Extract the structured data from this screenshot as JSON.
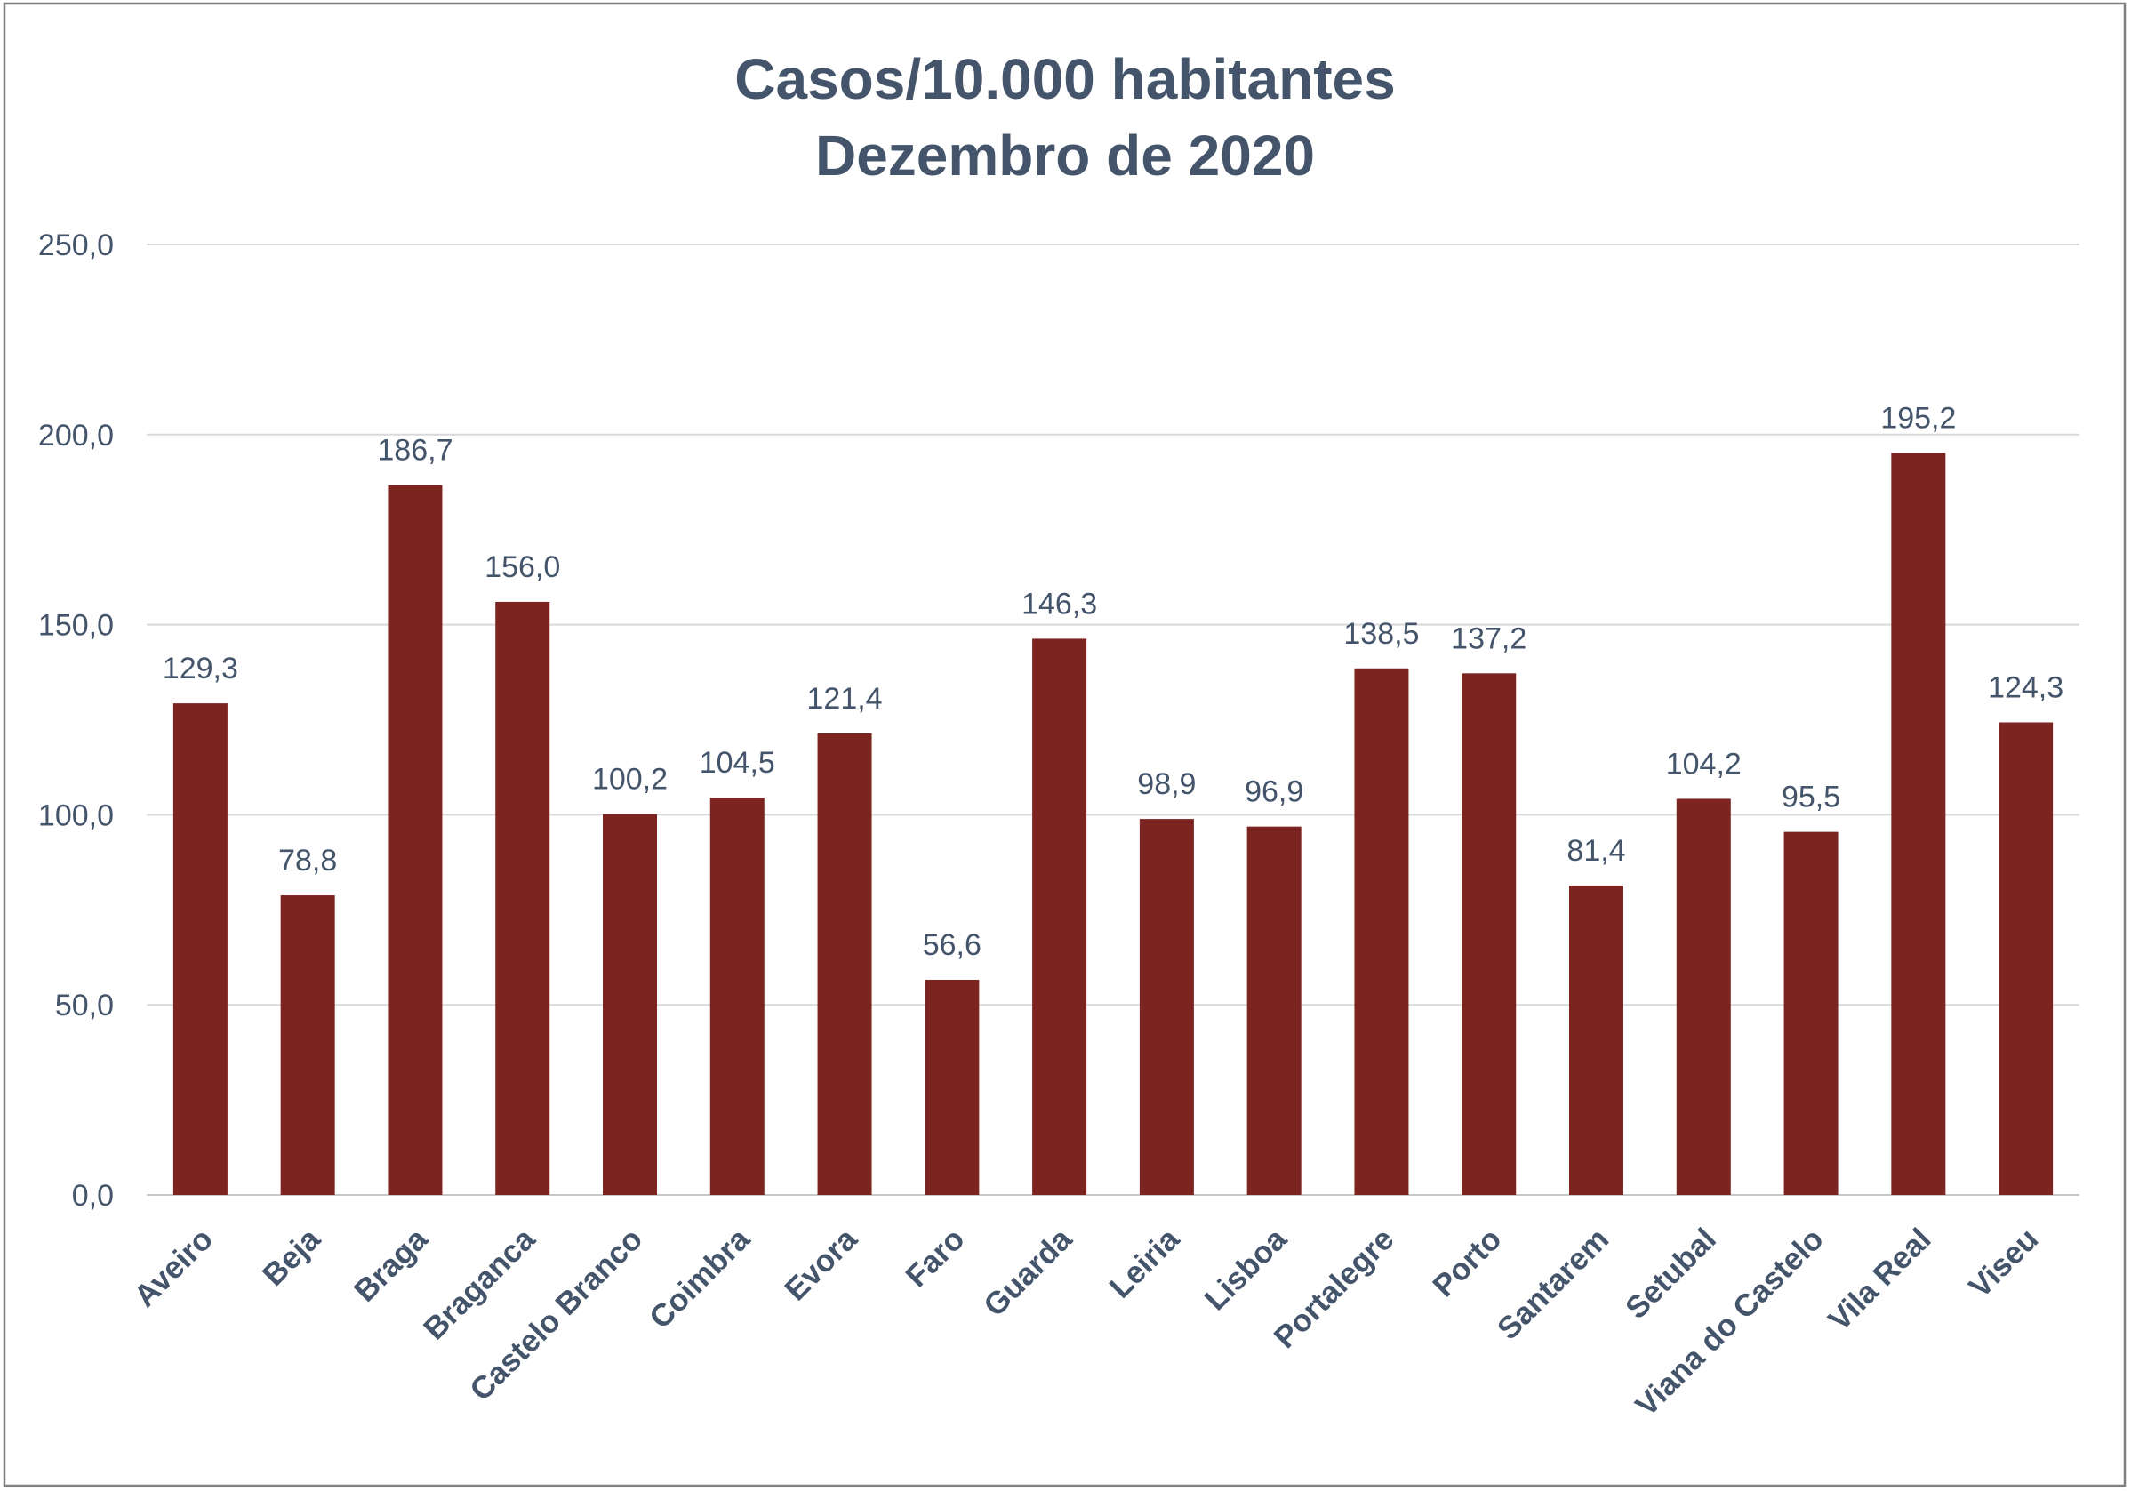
{
  "chart_data": {
    "type": "bar",
    "title": "Casos/10.000 habitantes",
    "subtitle": "Dezembro de 2020",
    "categories": [
      "Aveiro",
      "Beja",
      "Braga",
      "Braganca",
      "Castelo Branco",
      "Coimbra",
      "Evora",
      "Faro",
      "Guarda",
      "Leiria",
      "Lisboa",
      "Portalegre",
      "Porto",
      "Santarem",
      "Setubal",
      "Viana do Castelo",
      "Vila Real",
      "Viseu"
    ],
    "values": [
      129.3,
      78.8,
      186.7,
      156.0,
      100.2,
      104.5,
      121.4,
      56.6,
      146.3,
      98.9,
      96.9,
      138.5,
      137.2,
      81.4,
      104.2,
      95.5,
      195.2,
      124.3
    ],
    "ylim": [
      0,
      250
    ],
    "yticks": [
      0,
      50,
      100,
      150,
      200,
      250
    ],
    "ytick_labels": [
      "0,0",
      "50,0",
      "100,0",
      "150,0",
      "200,0",
      "250,0"
    ],
    "grid": true,
    "bar_color": "#7B2420",
    "text_color": "#44546A",
    "grid_color": "#D9D9D9",
    "border_color": "#7F7F7F"
  }
}
